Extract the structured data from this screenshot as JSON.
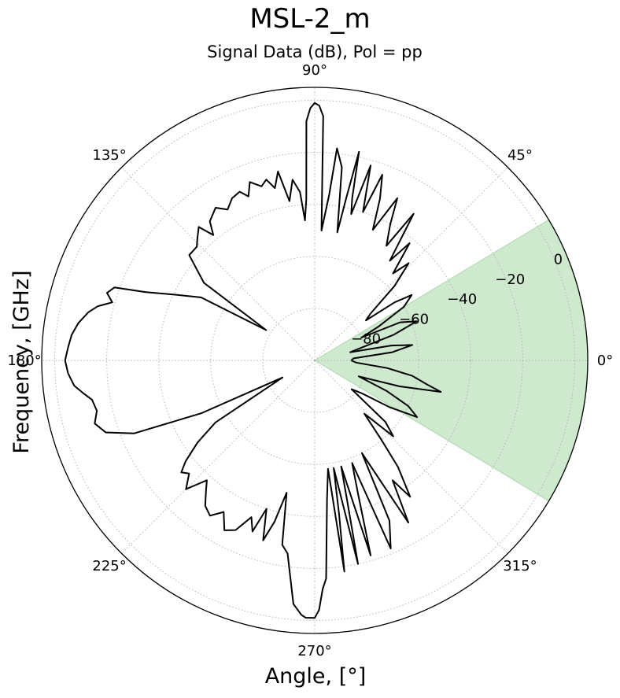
{
  "chart_data": {
    "type": "polar-line",
    "title": "MSL-2_m",
    "subtitle": "Signal Data (dB), Pol = pp",
    "xlabel": "Angle, [$^\\circ$]",
    "xlabel_display": "Angle, [°]",
    "ylabel": "Frequency, [GHz]",
    "theta_unit": "degrees",
    "angle_ticks": [
      "0°",
      "45°",
      "90°",
      "135°",
      "180°",
      "225°",
      "270°",
      "315°"
    ],
    "radial_ticks": [
      "−80",
      "−60",
      "−40",
      "−20",
      "0"
    ],
    "radial_range": [
      -100,
      5
    ],
    "grid": true,
    "line_color": "#000000",
    "highlight": {
      "theta_range": [
        -31,
        31
      ],
      "r_range": [
        -100,
        5
      ],
      "color": "#2ca02c",
      "alpha": 0.23
    },
    "series": [
      {
        "points": [
          [
            0,
            -86
          ],
          [
            3,
            -85
          ],
          [
            6,
            -70
          ],
          [
            9,
            -62
          ],
          [
            11,
            -70
          ],
          [
            13,
            -86
          ],
          [
            15,
            -82
          ],
          [
            18,
            -68
          ],
          [
            21,
            -58
          ],
          [
            24,
            -64
          ],
          [
            26,
            -80
          ],
          [
            28,
            -72
          ],
          [
            31,
            -60
          ],
          [
            34,
            -55
          ],
          [
            36,
            -62
          ],
          [
            38,
            -75
          ],
          [
            40,
            -72
          ],
          [
            43,
            -58
          ],
          [
            46,
            -48
          ],
          [
            48,
            -55
          ],
          [
            51,
            -42
          ],
          [
            53,
            -52
          ],
          [
            56,
            -32
          ],
          [
            58,
            -48
          ],
          [
            61,
            -40
          ],
          [
            63,
            -30
          ],
          [
            66,
            -45
          ],
          [
            68,
            -33
          ],
          [
            70,
            -24
          ],
          [
            72,
            -40
          ],
          [
            74,
            -22
          ],
          [
            76,
            -42
          ],
          [
            77,
            -36
          ],
          [
            78,
            -18
          ],
          [
            79,
            -36
          ],
          [
            80,
            -50
          ],
          [
            82,
            -25
          ],
          [
            84,
            -18
          ],
          [
            85,
            -36
          ],
          [
            87,
            -50
          ],
          [
            88,
            -6
          ],
          [
            89,
            -2
          ],
          [
            90,
            -1
          ],
          [
            91,
            -3
          ],
          [
            92,
            -8
          ],
          [
            93,
            -38
          ],
          [
            94,
            -46
          ],
          [
            95,
            -35
          ],
          [
            97,
            -30
          ],
          [
            99,
            -38
          ],
          [
            101,
            -26
          ],
          [
            103,
            -32
          ],
          [
            105,
            -28
          ],
          [
            107,
            -30
          ],
          [
            110,
            -27
          ],
          [
            112,
            -32
          ],
          [
            114,
            -29
          ],
          [
            117,
            -30
          ],
          [
            120,
            -33
          ],
          [
            123,
            -30
          ],
          [
            127,
            -33
          ],
          [
            129,
            -38
          ],
          [
            131,
            -32
          ],
          [
            134,
            -35
          ],
          [
            136,
            -37
          ],
          [
            140,
            -37
          ],
          [
            145,
            -48
          ],
          [
            148,
            -78
          ],
          [
            151,
            -50
          ],
          [
            155,
            -40
          ],
          [
            158,
            -30
          ],
          [
            160,
            -18
          ],
          [
            162,
            -16
          ],
          [
            164,
            -19
          ],
          [
            166,
            -14
          ],
          [
            168,
            -11
          ],
          [
            171,
            -8
          ],
          [
            174,
            -6
          ],
          [
            177,
            -5
          ],
          [
            180,
            -4
          ],
          [
            183,
            -5
          ],
          [
            186,
            -7
          ],
          [
            188,
            -10
          ],
          [
            190,
            -13
          ],
          [
            193,
            -14
          ],
          [
            196,
            -12
          ],
          [
            199,
            -15
          ],
          [
            202,
            -25
          ],
          [
            205,
            -52
          ],
          [
            208,
            -86
          ],
          [
            212,
            -55
          ],
          [
            215,
            -45
          ],
          [
            218,
            -37
          ],
          [
            220,
            -33
          ],
          [
            222,
            -35
          ],
          [
            225,
            -30
          ],
          [
            228,
            -38
          ],
          [
            230,
            -35
          ],
          [
            233,
            -30
          ],
          [
            236,
            -28
          ],
          [
            239,
            -32
          ],
          [
            242,
            -26
          ],
          [
            245,
            -28
          ],
          [
            248,
            -35
          ],
          [
            250,
            -30
          ],
          [
            252,
            -40
          ],
          [
            254,
            -28
          ],
          [
            256,
            -36
          ],
          [
            258,
            -48
          ],
          [
            260,
            -28
          ],
          [
            262,
            -25
          ],
          [
            265,
            -6
          ],
          [
            267,
            -2
          ],
          [
            268,
            -1
          ],
          [
            270,
            -1
          ],
          [
            271,
            -4
          ],
          [
            272,
            -12
          ],
          [
            273,
            -16
          ],
          [
            275,
            -46
          ],
          [
            277,
            -58
          ],
          [
            278,
            -18
          ],
          [
            279,
            -40
          ],
          [
            280,
            -58
          ],
          [
            282,
            -20
          ],
          [
            283,
            -44
          ],
          [
            284,
            -58
          ],
          [
            286,
            -22
          ],
          [
            288,
            -46
          ],
          [
            290,
            -58
          ],
          [
            292,
            -22
          ],
          [
            295,
            -32
          ],
          [
            297,
            -60
          ],
          [
            300,
            -28
          ],
          [
            303,
            -45
          ],
          [
            305,
            -36
          ],
          [
            308,
            -48
          ],
          [
            310,
            -60
          ],
          [
            313,
            -72
          ],
          [
            316,
            -58
          ],
          [
            319,
            -64
          ],
          [
            322,
            -82
          ],
          [
            325,
            -78
          ],
          [
            328,
            -66
          ],
          [
            331,
            -55
          ],
          [
            334,
            -60
          ],
          [
            337,
            -70
          ],
          [
            340,
            -82
          ],
          [
            343,
            -66
          ],
          [
            346,
            -50
          ],
          [
            348,
            -56
          ],
          [
            351,
            -62
          ],
          [
            354,
            -72
          ],
          [
            357,
            -84
          ],
          [
            360,
            -86
          ]
        ]
      }
    ]
  }
}
